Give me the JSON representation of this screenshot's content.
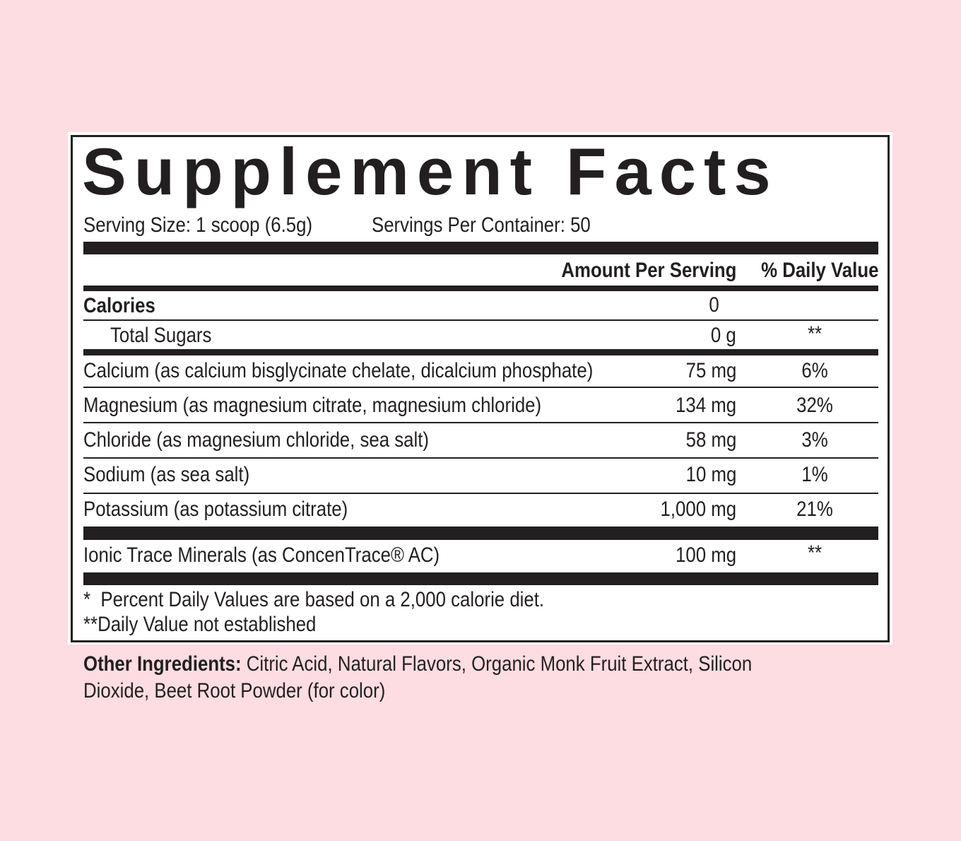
{
  "title": "Supplement Facts",
  "serving_size": "Serving Size: 1 scoop (6.5g)",
  "servings_per_container": "Servings Per Container: 50",
  "header": {
    "amount": "Amount Per Serving",
    "dv": "% Daily Value"
  },
  "calories": {
    "label": "Calories",
    "amount": "0"
  },
  "total_sugars": {
    "label": "Total Sugars",
    "amount": "0 g",
    "dv": "**"
  },
  "minerals": [
    {
      "label": "Calcium (as calcium bisglycinate chelate, dicalcium phosphate)",
      "amount": "75 mg",
      "dv": "6%"
    },
    {
      "label": "Magnesium (as magnesium citrate, magnesium chloride)",
      "amount": "134 mg",
      "dv": "32%"
    },
    {
      "label": "Chloride (as magnesium chloride, sea salt)",
      "amount": "58 mg",
      "dv": "3%"
    },
    {
      "label": "Sodium (as sea salt)",
      "amount": "10 mg",
      "dv": "1%"
    },
    {
      "label": "Potassium (as potassium citrate)",
      "amount": "1,000 mg",
      "dv": "21%"
    }
  ],
  "trace": {
    "label": "Ionic Trace Minerals (as ConcenTrace® AC)",
    "amount": "100 mg",
    "dv": "**"
  },
  "footnotes": [
    "*  Percent Daily Values are based on a 2,000 calorie diet.",
    "**Daily Value not established"
  ],
  "other_ingredients": {
    "label": "Other Ingredients:",
    "line1": "Citric Acid, Natural Flavors, Organic Monk Fruit Extract, Silicon",
    "line2": "Dioxide, Beet Root Powder (for color)"
  },
  "colors": {
    "background": "#fddce2",
    "ink": "#231f20",
    "panel": "#ffffff"
  }
}
